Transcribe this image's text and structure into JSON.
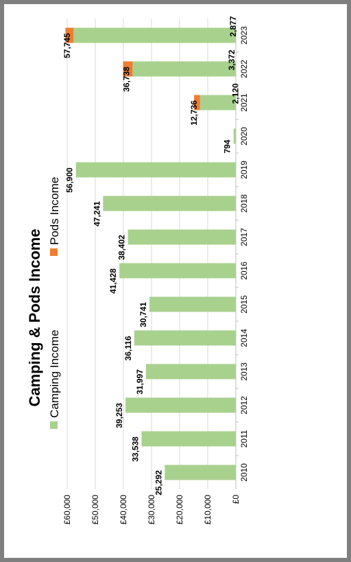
{
  "chart_data": {
    "type": "bar",
    "title": "Camping & Pods Income",
    "categories": [
      "2010",
      "2011",
      "2012",
      "2013",
      "2014",
      "2015",
      "2016",
      "2017",
      "2018",
      "2019",
      "2020",
      "2021",
      "2022",
      "2023"
    ],
    "series": [
      {
        "name": "Camping Income",
        "color": "#a9d18e",
        "values": [
          25292,
          33538,
          39253,
          31997,
          36116,
          30741,
          41428,
          38402,
          47241,
          56900,
          794,
          12736,
          36738,
          57745
        ],
        "labels": [
          "25,292",
          "33,538",
          "39,253",
          "31,997",
          "36,116",
          "30,741",
          "41,428",
          "38,402",
          "47,241",
          "56,900",
          "794",
          "12,736",
          "36,738",
          "57,745"
        ]
      },
      {
        "name": "Pods Income",
        "color": "#ed7d31",
        "values": [
          0,
          0,
          0,
          0,
          0,
          0,
          0,
          0,
          0,
          0,
          0,
          2120,
          3372,
          2877
        ],
        "labels": [
          "",
          "",
          "",
          "",
          "",
          "",
          "",
          "",
          "",
          "",
          "",
          "2,120",
          "3,372",
          "2,877"
        ]
      }
    ],
    "ylim": [
      0,
      60000
    ],
    "yticks": [
      0,
      10000,
      20000,
      30000,
      40000,
      50000,
      60000
    ],
    "ytick_labels": [
      "£0",
      "£10,000",
      "£20,000",
      "£30,000",
      "£40,000",
      "£50,000",
      "£60,000"
    ],
    "legend_position": "top",
    "grid": true,
    "orientation": "rotated-90"
  }
}
